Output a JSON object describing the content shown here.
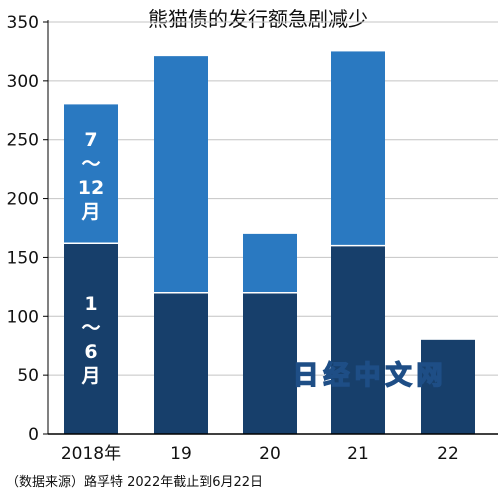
{
  "chart_data": {
    "type": "bar",
    "stacked": true,
    "title": "熊猫债的发行额急剧减少",
    "categories": [
      "2018年",
      "19",
      "20",
      "21",
      "22"
    ],
    "series": [
      {
        "name": "1～6月",
        "values": [
          162,
          120,
          120,
          160,
          80
        ],
        "color": "#173f6b"
      },
      {
        "name": "7～12月",
        "values": [
          118,
          201,
          50,
          165,
          null
        ],
        "color": "#2a79c1"
      }
    ],
    "ylim": [
      0,
      350
    ],
    "yticks": [
      0,
      50,
      100,
      150,
      200,
      250,
      300,
      350
    ],
    "grid": true,
    "legend": "inside first bar"
  },
  "source_note": "（数据来源）路孚特  2022年截止到6月22日",
  "watermark": "日经中文网",
  "segment_labels": {
    "h2": [
      "7",
      "～",
      "12",
      "月"
    ],
    "h1": [
      "1",
      "～",
      "6",
      "月"
    ]
  }
}
